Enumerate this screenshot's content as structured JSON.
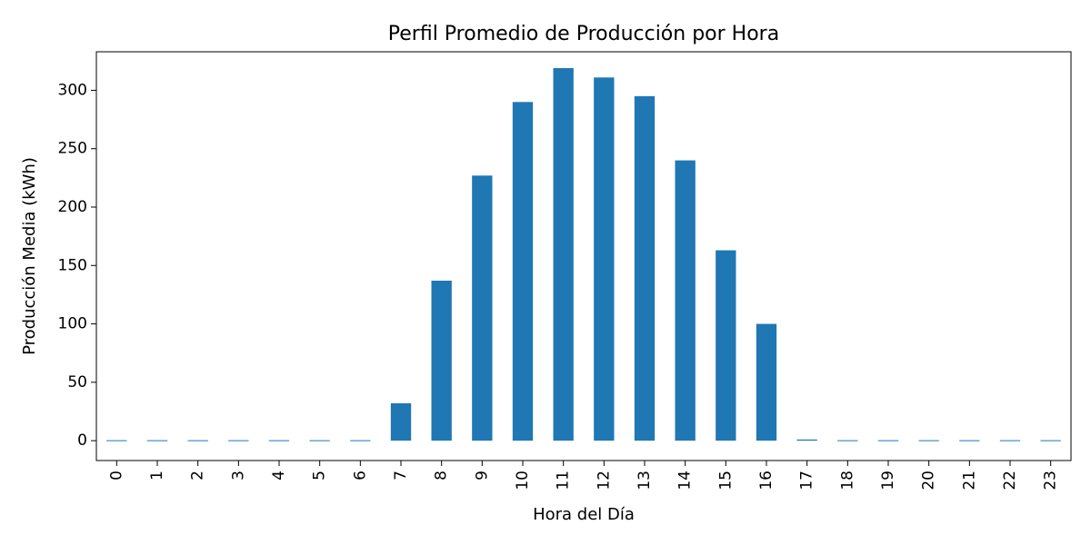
{
  "chart_data": {
    "type": "bar",
    "title": "Perfil Promedio de Producción por Hora",
    "xlabel": "Hora del Día",
    "ylabel": "Producción Media (kWh)",
    "categories": [
      "0",
      "1",
      "2",
      "3",
      "4",
      "5",
      "6",
      "7",
      "8",
      "9",
      "10",
      "11",
      "12",
      "13",
      "14",
      "15",
      "16",
      "17",
      "18",
      "19",
      "20",
      "21",
      "22",
      "23"
    ],
    "values": [
      0,
      0,
      0,
      0,
      0,
      0,
      0,
      32,
      137,
      227,
      290,
      319,
      311,
      295,
      240,
      163,
      100,
      1,
      0,
      0,
      0,
      0,
      0,
      0
    ],
    "ylim": [
      -17,
      333
    ],
    "yticks": [
      0,
      50,
      100,
      150,
      200,
      250,
      300
    ],
    "bar_color": "#1f77b4",
    "grid": false,
    "legend": "none"
  }
}
